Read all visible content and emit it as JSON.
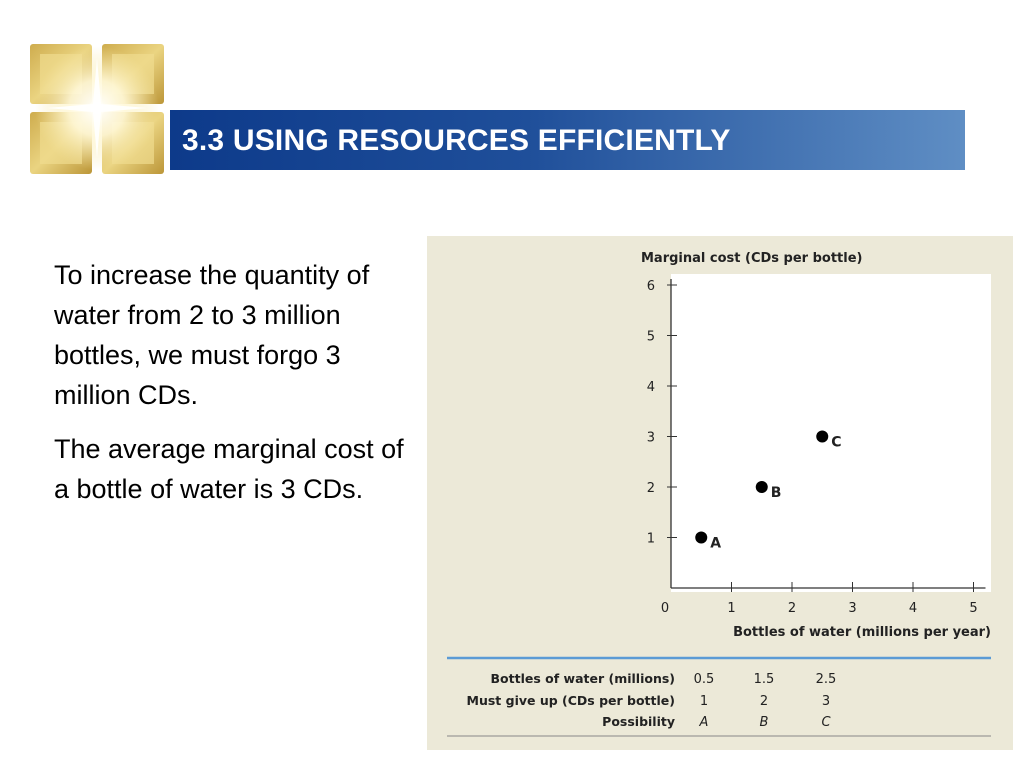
{
  "slide": {
    "title": "3.3 USING RESOURCES EFFICIENTLY",
    "paragraphs": [
      "To increase the quantity of water from 2 to 3 million bottles, we must forgo 3 million CDs.",
      "The average marginal cost of a bottle of water is 3 CDs."
    ]
  },
  "colors": {
    "title_bar_start": "#0d3a8a",
    "title_bar_end": "#5f8ec4",
    "figure_background": "#ece9d8",
    "table_rule": "#5b9bd5"
  },
  "chart_data": {
    "type": "scatter",
    "ylabel": "Marginal cost (CDs per bottle)",
    "xlabel": "Bottles of water (millions per year)",
    "xlim": [
      0,
      5
    ],
    "ylim": [
      0,
      6
    ],
    "x_ticks": [
      "0",
      "1",
      "2",
      "3",
      "4",
      "5"
    ],
    "y_ticks": [
      "1",
      "2",
      "3",
      "4",
      "5",
      "6"
    ],
    "grid": false,
    "points": [
      {
        "x": 0.5,
        "y": 1,
        "label": "A"
      },
      {
        "x": 1.5,
        "y": 2,
        "label": "B"
      },
      {
        "x": 2.5,
        "y": 3,
        "label": "C"
      }
    ]
  },
  "table": {
    "row_labels": [
      "Bottles of water (millions)",
      "Must give up (CDs per bottle)",
      "Possibility"
    ],
    "columns": [
      [
        "0.5",
        "1",
        "A"
      ],
      [
        "1.5",
        "2",
        "B"
      ],
      [
        "2.5",
        "3",
        "C"
      ]
    ]
  }
}
